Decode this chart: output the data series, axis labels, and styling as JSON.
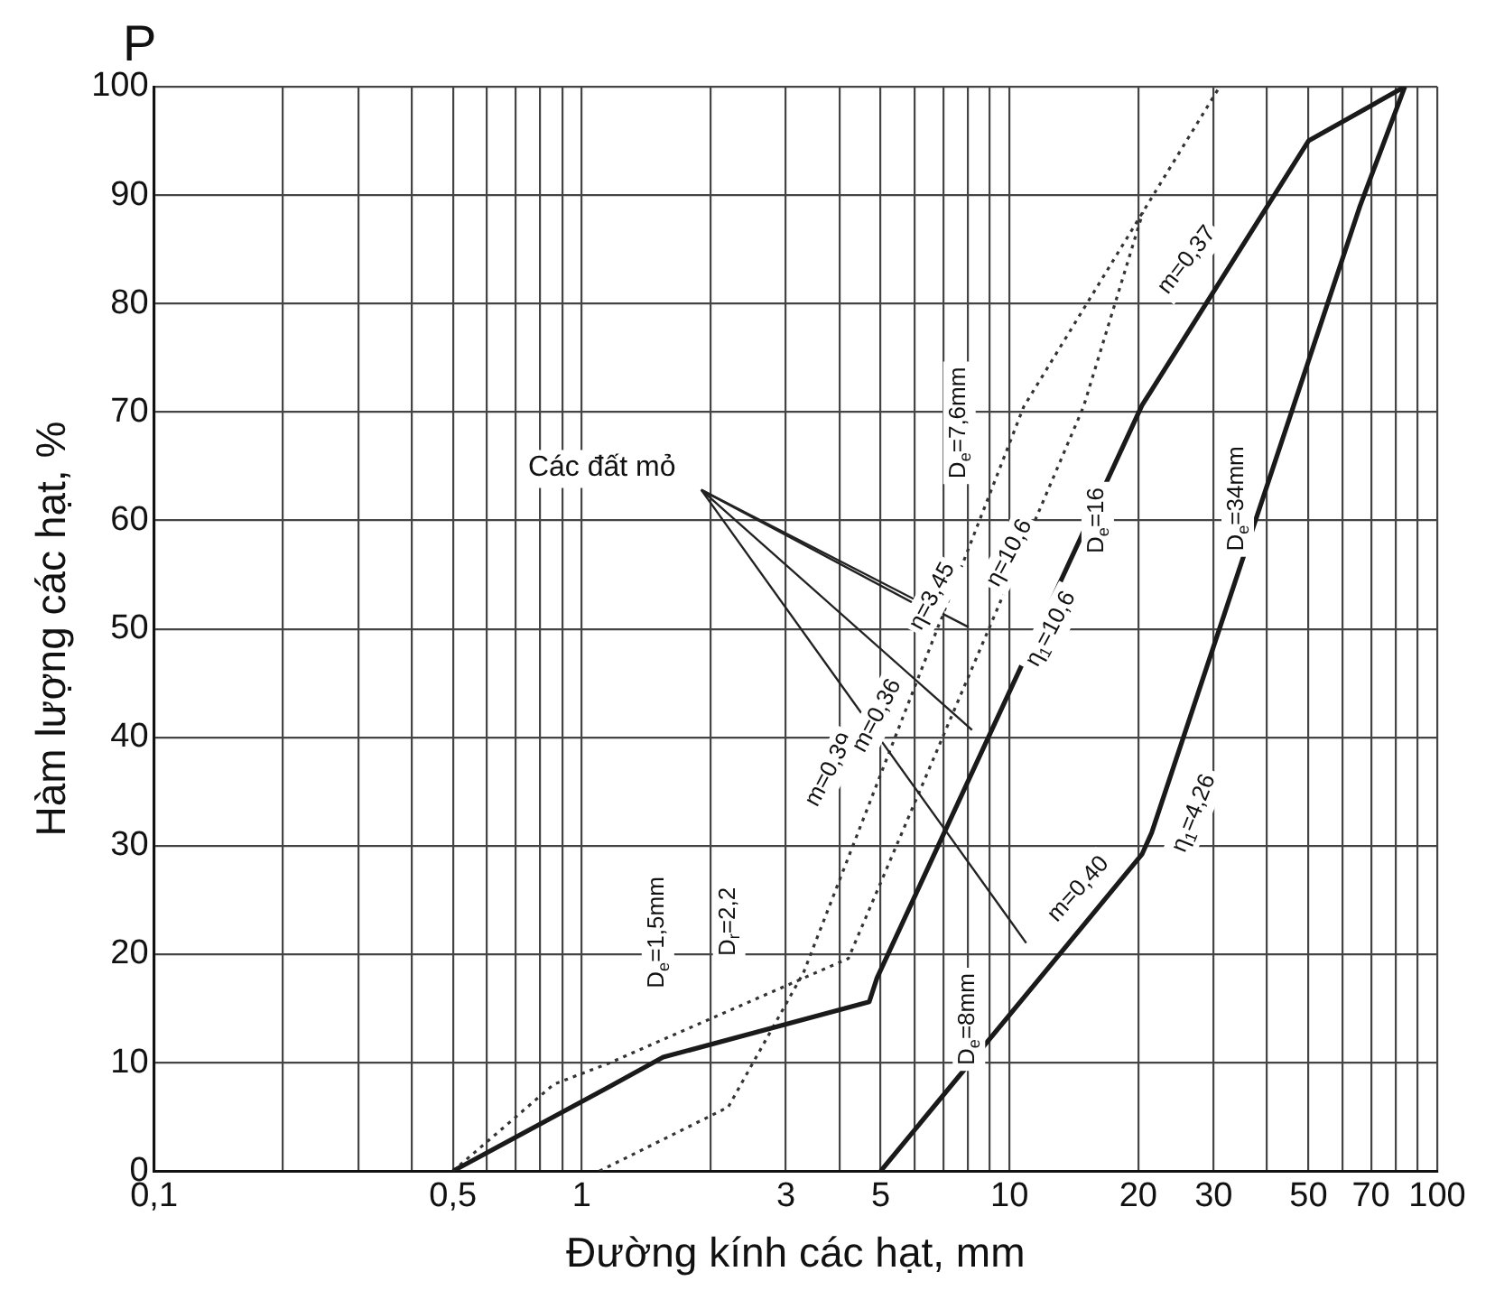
{
  "chart_data": {
    "type": "line",
    "xlabel": "Đường kính các hạt, mm",
    "ylabel": "Hàm lượng các hạt, %",
    "log": "x",
    "xlim": [
      0.1,
      100
    ],
    "ylim": [
      0,
      100
    ],
    "xticks": [
      {
        "value": 0.1,
        "label": "0,1"
      },
      {
        "value": 0.2,
        "label": null
      },
      {
        "value": 0.3,
        "label": null
      },
      {
        "value": 0.4,
        "label": null
      },
      {
        "value": 0.5,
        "label": "0,5"
      },
      {
        "value": 0.6,
        "label": null
      },
      {
        "value": 0.7,
        "label": null
      },
      {
        "value": 0.8,
        "label": null
      },
      {
        "value": 0.9,
        "label": null
      },
      1,
      {
        "value": 2,
        "label": null
      },
      3,
      {
        "value": 4,
        "label": null
      },
      5,
      {
        "value": 6,
        "label": null
      },
      {
        "value": 7,
        "label": null
      },
      {
        "value": 8,
        "label": null
      },
      {
        "value": 9,
        "label": null
      },
      10,
      20,
      30,
      {
        "value": 40,
        "label": null
      },
      50,
      {
        "value": 60,
        "label": null
      },
      70,
      {
        "value": 80,
        "label": null
      },
      {
        "value": 90,
        "label": null
      },
      100
    ],
    "yticks": [
      0,
      10,
      20,
      30,
      40,
      50,
      60,
      70,
      80,
      90,
      100
    ],
    "grid": true,
    "series": [
      {
        "color": "#1a1a1a",
        "line_style": "solid",
        "x": [
          0.5,
          1.15,
          1.55,
          4.7,
          4.9,
          20.4,
          50,
          84
        ],
        "values": [
          0,
          7.7,
          10.5,
          15.6,
          17.8,
          70.6,
          95,
          100
        ]
      },
      {
        "color": "#1a1a1a",
        "line_style": "solid",
        "x": [
          5,
          20.4,
          21.5,
          66,
          84
        ],
        "values": [
          0,
          29.2,
          31.2,
          89,
          100
        ]
      },
      {
        "color": "#333333",
        "line_style": "dotted",
        "x": [
          0.5,
          0.86,
          1.15,
          4.2,
          14.9,
          20.5
        ],
        "values": [
          0,
          8,
          9.9,
          19.6,
          70.5,
          88.4
        ]
      },
      {
        "color": "#333333",
        "line_style": "dotted",
        "x": [
          1.1,
          2.2,
          3.3,
          10.8,
          31
        ],
        "values": [
          0,
          5.9,
          18.3,
          70.5,
          100
        ]
      }
    ],
    "annotations": [
      "P",
      {
        "text": "Các đất mỏ",
        "x": 6.93,
        "y": 51
      },
      "D$_{e}$=1,5mm",
      "D$_{r}$=2,2",
      "D$_{e}$=7,6mm",
      "D$_{e}$=16",
      "D$_{e}$=34mm",
      "D$_{e}$=8mm",
      "m=0,39",
      "m=0,36",
      "η=3,45",
      "η=10,6",
      "η$_{1}$=10,6",
      "m=0,37",
      "m=0,40",
      "η$_{1}$=4,26"
    ]
  }
}
